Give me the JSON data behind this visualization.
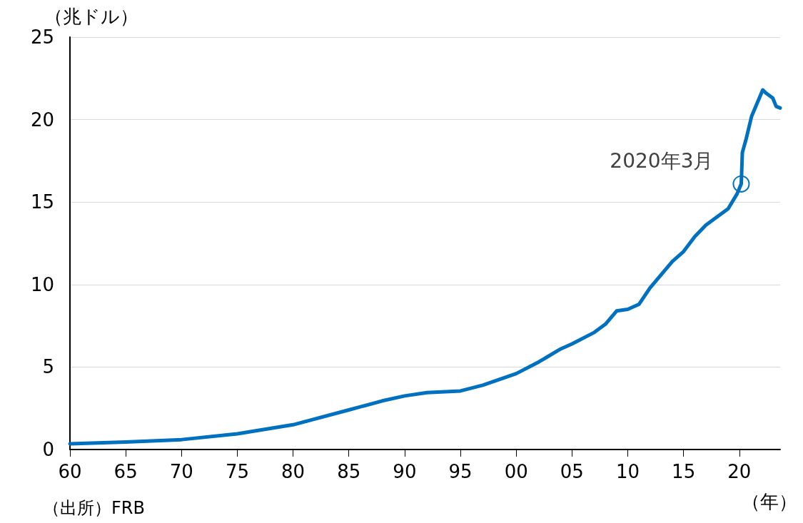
{
  "chart_data": {
    "type": "line",
    "ylabel": "（兆ドル）",
    "xlabel": "（年）",
    "annotations": [
      {
        "text": "2020年3月",
        "x": 2020.17,
        "y": 16.1
      },
      "（出所）FRB"
    ],
    "x": [
      1960,
      1965,
      1970,
      1975,
      1980,
      1985,
      1988,
      1990,
      1992,
      1995,
      1997,
      2000,
      2002,
      2004,
      2005,
      2007,
      2008,
      2009,
      2010,
      2011,
      2012,
      2013,
      2014,
      2015,
      2016,
      2017,
      2018,
      2019,
      2019.8,
      2020.17,
      2020.2,
      2020.27,
      2020.6,
      2021.1,
      2021.6,
      2022.1,
      2022.4,
      2023.0,
      2023.3,
      2023.66
    ],
    "series": [
      {
        "color": "#0070c0",
        "values": [
          0.35,
          0.45,
          0.6,
          0.95,
          1.5,
          2.4,
          2.95,
          3.25,
          3.45,
          3.55,
          3.9,
          4.6,
          5.3,
          6.1,
          6.4,
          7.1,
          7.6,
          8.4,
          8.5,
          8.8,
          9.8,
          10.6,
          11.4,
          12.0,
          12.9,
          13.6,
          14.1,
          14.6,
          15.5,
          16.1,
          16.6,
          18.0,
          18.8,
          20.2,
          21.0,
          21.8,
          21.6,
          21.3,
          20.8,
          20.7
        ]
      }
    ],
    "xlim": [
      1960,
      2023.66
    ],
    "xticks": [
      {
        "value": 1960,
        "label": "60"
      },
      {
        "value": 1965,
        "label": "65"
      },
      {
        "value": 1970,
        "label": "70"
      },
      {
        "value": 1975,
        "label": "75"
      },
      {
        "value": 1980,
        "label": "80"
      },
      {
        "value": 1985,
        "label": "85"
      },
      {
        "value": 1990,
        "label": "90"
      },
      {
        "value": 1995,
        "label": "95"
      },
      {
        "value": 2000,
        "label": "00"
      },
      {
        "value": 2005,
        "label": "05"
      },
      {
        "value": 2010,
        "label": "10"
      },
      {
        "value": 2015,
        "label": "15"
      },
      {
        "value": 2020,
        "label": "20"
      }
    ],
    "ylim": [
      0,
      25
    ],
    "yticks": [
      0,
      5,
      10,
      15,
      20,
      25
    ],
    "grid": "y",
    "marker": "none",
    "line_style": "solid"
  }
}
